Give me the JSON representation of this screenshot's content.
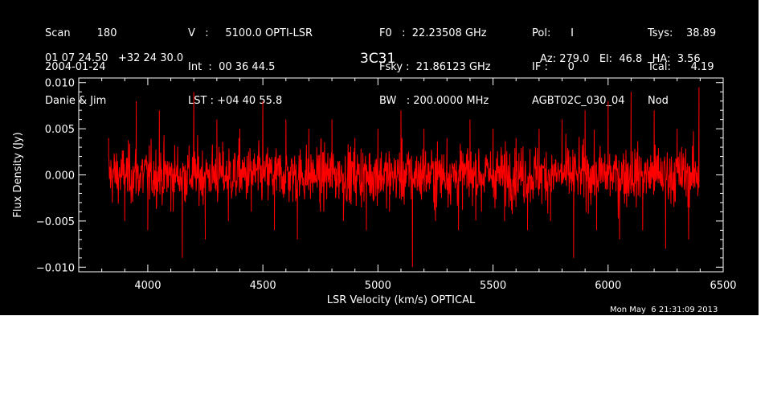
{
  "header": {
    "col1": [
      "Scan        180",
      "2004-01-24",
      "Danie & Jim"
    ],
    "col2": [
      "V   :     5100.0 OPTI-LSR",
      "Int  :  00 36 44.5",
      "LST : +04 40 55.8"
    ],
    "col3": [
      "F0   :  22.23508 GHz",
      "Fsky :  21.86123 GHz",
      "BW   : 200.0000 MHz"
    ],
    "col4": [
      "Pol:      I",
      "IF :      0",
      "AGBT02C_030_04"
    ],
    "col5": [
      "Tsys:    38.89",
      "Tcal:      4.19",
      "Nod"
    ],
    "coords": "01 07 24.50   +32 24 30.0",
    "source": "3C31",
    "pointing": "Az: 279.0   El:  46.8   HA:  3.56"
  },
  "timestamp": "Mon May  6 21:31:09 2013",
  "colors": {
    "background": "#000000",
    "axes": "#ffffff",
    "trace": "#ff0000",
    "page": "#ffffff"
  },
  "chart_data": {
    "type": "line",
    "title": "3C31",
    "xlabel": "LSR Velocity (km/s) OPTICAL",
    "ylabel": "Flux Density (Jy)",
    "xlim": [
      3700,
      6500
    ],
    "ylim": [
      -0.0105,
      0.0105
    ],
    "xticks": [
      4000,
      4500,
      5000,
      5500,
      6000,
      6500
    ],
    "xtick_labels": [
      "4000",
      "4500",
      "5000",
      "5500",
      "6000",
      "6500"
    ],
    "yticks": [
      -0.01,
      -0.005,
      0.0,
      0.005,
      0.01
    ],
    "ytick_labels": [
      "−0.010",
      "−0.005",
      "0.000",
      "0.005",
      "0.010"
    ],
    "x_range": [
      3830,
      6395
    ],
    "series": [
      {
        "description": "noise-like spectrum, approximately zero mean, rms about 0.003 Jy",
        "x": [
          3830,
          3900,
          3950,
          4000,
          4050,
          4100,
          4150,
          4200,
          4250,
          4300,
          4350,
          4400,
          4450,
          4500,
          4550,
          4600,
          4650,
          4700,
          4750,
          4800,
          4850,
          4900,
          4950,
          5000,
          5050,
          5100,
          5150,
          5200,
          5250,
          5300,
          5350,
          5400,
          5450,
          5500,
          5550,
          5600,
          5650,
          5700,
          5750,
          5800,
          5850,
          5900,
          5950,
          6000,
          6050,
          6100,
          6150,
          6200,
          6250,
          6300,
          6350,
          6395
        ],
        "y": [
          0.004,
          -0.005,
          0.008,
          -0.006,
          0.007,
          -0.004,
          -0.009,
          0.009,
          -0.007,
          0.006,
          -0.005,
          0.005,
          -0.004,
          0.008,
          -0.006,
          0.006,
          -0.007,
          0.005,
          -0.004,
          0.006,
          -0.005,
          0.004,
          -0.006,
          0.005,
          -0.004,
          0.007,
          -0.01,
          0.005,
          -0.005,
          0.004,
          -0.006,
          0.006,
          -0.004,
          0.005,
          -0.005,
          0.004,
          -0.006,
          0.005,
          -0.005,
          0.006,
          -0.009,
          0.007,
          -0.006,
          0.008,
          -0.007,
          0.009,
          -0.006,
          0.007,
          -0.008,
          0.005,
          -0.007,
          0.0095
        ]
      }
    ]
  }
}
